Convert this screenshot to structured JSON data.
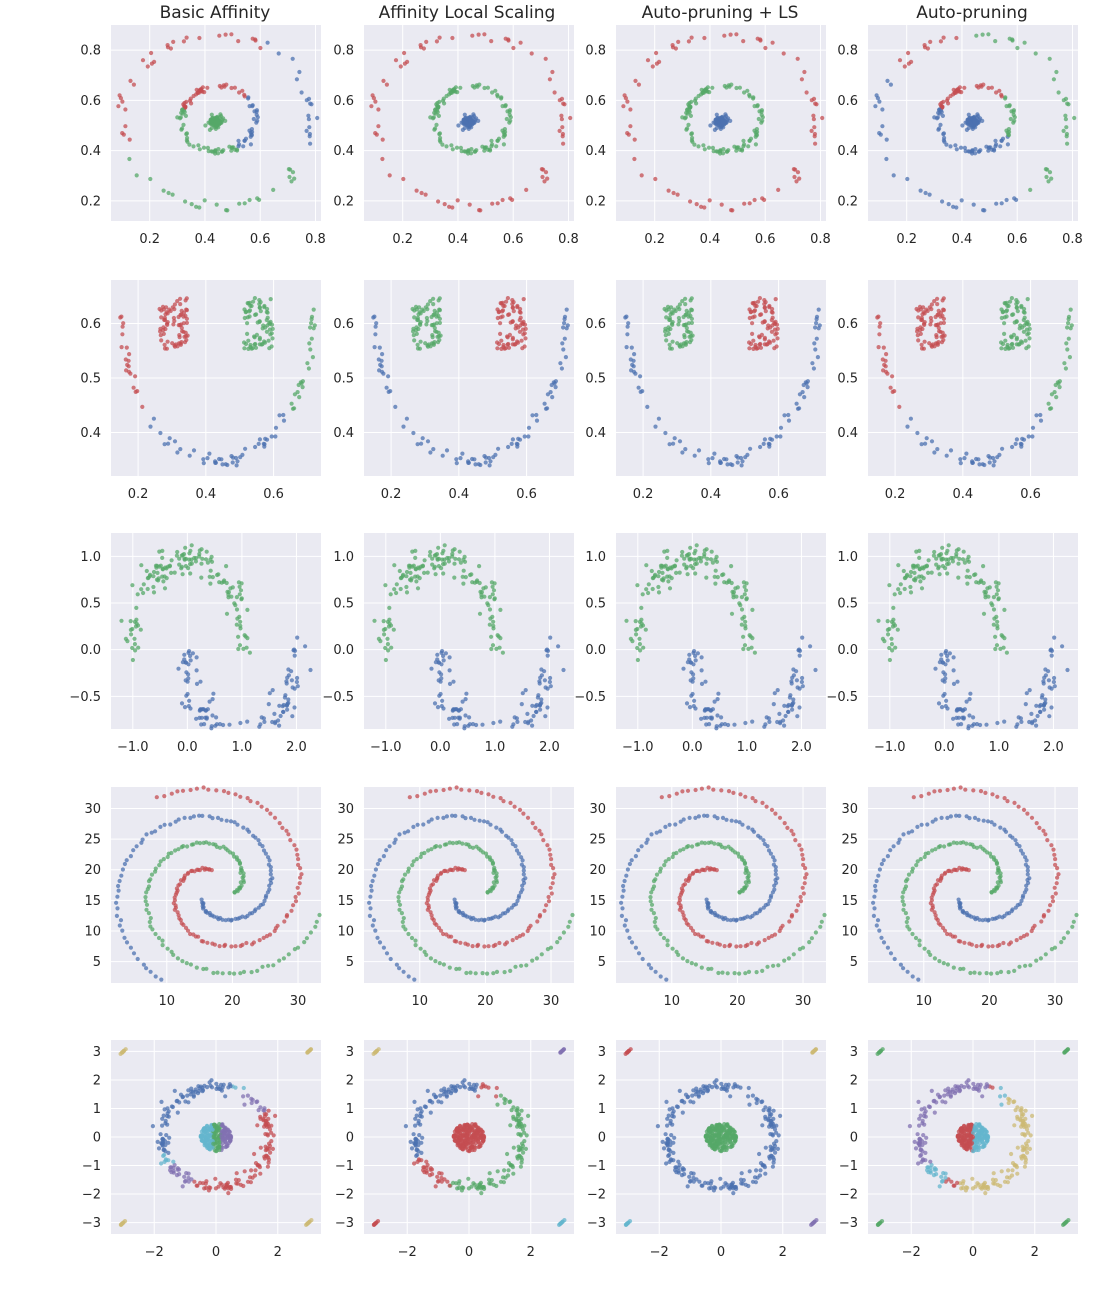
{
  "figure": {
    "column_titles": [
      "Basic Affinity",
      "Affinity Local Scaling",
      "Auto-pruning + LS",
      "Auto-pruning"
    ],
    "colors": {
      "blue": "#4c72b0",
      "green": "#55a868",
      "red": "#c44e52",
      "purple": "#8172b2",
      "cyan": "#64b5cd",
      "tan": "#ccb974",
      "background": "#eaeaf2",
      "grid": "#ffffff"
    }
  },
  "chart_data": [
    {
      "type": "scatter",
      "dataset": "rings",
      "xlim": [
        0.06,
        0.82
      ],
      "ylim": [
        0.12,
        0.9
      ],
      "xticks": [
        0.2,
        0.4,
        0.6,
        0.8
      ],
      "yticks": [
        0.2,
        0.4,
        0.6,
        0.8
      ],
      "tick_format": "fixed1",
      "grid": true,
      "methods": [
        {
          "title": "Basic Affinity",
          "assignment": {
            "center": "green",
            "ring_left": "green",
            "ring_right": "blue",
            "ring_top": "red",
            "outer_top": "red",
            "outer_bottom": "green",
            "outer_right": "blue"
          }
        },
        {
          "title": "Affinity Local Scaling",
          "assignment": {
            "center": "blue",
            "ring": "green",
            "outer": "red"
          }
        },
        {
          "title": "Auto-pruning + LS",
          "assignment": {
            "center": "blue",
            "ring": "green",
            "outer": "red"
          }
        },
        {
          "title": "Auto-pruning",
          "assignment": {
            "center": "blue",
            "ring_right": "green",
            "ring_left_bottom": "blue",
            "ring_top": "red",
            "outer_left": "blue",
            "outer_top": "red",
            "outer_right": "green"
          }
        }
      ]
    },
    {
      "type": "scatter",
      "dataset": "blobs_and_arc",
      "xlim": [
        0.12,
        0.74
      ],
      "ylim": [
        0.32,
        0.68
      ],
      "xticks": [
        0.2,
        0.4,
        0.6
      ],
      "yticks": [
        0.4,
        0.5,
        0.6
      ],
      "tick_format": "fixed1",
      "grid": true,
      "methods": [
        {
          "title": "Basic Affinity",
          "assignment": {
            "left_blob": "red",
            "right_blob": "green",
            "arc_left_end": "red",
            "arc_right_end": "green",
            "arc_bottom": "blue"
          }
        },
        {
          "title": "Affinity Local Scaling",
          "assignment": {
            "left_blob": "green",
            "right_blob": "red",
            "arc": "blue"
          }
        },
        {
          "title": "Auto-pruning + LS",
          "assignment": {
            "left_blob": "green",
            "right_blob": "red",
            "arc": "blue"
          }
        },
        {
          "title": "Auto-pruning",
          "assignment": {
            "left_blob": "red",
            "right_blob": "green",
            "arc_left_end": "red",
            "arc_right_end": "green",
            "arc_bottom": "blue"
          }
        }
      ]
    },
    {
      "type": "scatter",
      "dataset": "moons",
      "xlim": [
        -1.4,
        2.45
      ],
      "ylim": [
        -0.85,
        1.25
      ],
      "xticks": [
        -1,
        0,
        1,
        2
      ],
      "yticks": [
        -0.5,
        0.0,
        0.5,
        1.0
      ],
      "tick_format": "fixed1",
      "grid": true,
      "methods": [
        {
          "title": "Basic Affinity",
          "assignment": {
            "upper_moon": "green",
            "lower_moon": "blue"
          }
        },
        {
          "title": "Affinity Local Scaling",
          "assignment": {
            "upper_moon": "green",
            "lower_moon": "blue"
          }
        },
        {
          "title": "Auto-pruning + LS",
          "assignment": {
            "upper_moon": "green",
            "lower_moon": "blue"
          }
        },
        {
          "title": "Auto-pruning",
          "assignment": {
            "upper_moon": "green",
            "lower_moon": "blue"
          }
        }
      ]
    },
    {
      "type": "scatter",
      "dataset": "spirals",
      "xlim": [
        1.5,
        33.5
      ],
      "ylim": [
        1.5,
        33.5
      ],
      "xticks": [
        10,
        20,
        30
      ],
      "yticks": [
        5,
        10,
        15,
        20,
        25,
        30
      ],
      "tick_format": "int",
      "grid": true,
      "methods": [
        {
          "title": "Basic Affinity",
          "assignment": {
            "spiral_1": "red",
            "spiral_2": "blue",
            "spiral_3": "green"
          }
        },
        {
          "title": "Affinity Local Scaling",
          "assignment": {
            "spiral_1": "red",
            "spiral_2": "blue",
            "spiral_3": "green"
          }
        },
        {
          "title": "Auto-pruning + LS",
          "assignment": {
            "spiral_1": "red",
            "spiral_2": "blue",
            "spiral_3": "green"
          }
        },
        {
          "title": "Auto-pruning",
          "assignment": {
            "spiral_1": "red",
            "spiral_2": "blue",
            "spiral_3": "green"
          }
        }
      ]
    },
    {
      "type": "scatter",
      "dataset": "disk_ring_corners",
      "xlim": [
        -3.4,
        3.4
      ],
      "ylim": [
        -3.4,
        3.4
      ],
      "xticks": [
        -2,
        0,
        2
      ],
      "yticks": [
        -3,
        -2,
        -1,
        0,
        1,
        2,
        3
      ],
      "tick_format": "int",
      "grid": true,
      "methods": [
        {
          "title": "Basic Affinity",
          "assignment": {
            "disk": "split",
            "ring": "mixed",
            "corners": "tan"
          }
        },
        {
          "title": "Affinity Local Scaling",
          "assignment": {
            "disk": "red",
            "ring": "blue/green/red",
            "corners": "tan/purple/red/cyan"
          }
        },
        {
          "title": "Auto-pruning + LS",
          "assignment": {
            "disk": "green",
            "ring": "blue",
            "corners": "tan/red/cyan/purple"
          }
        },
        {
          "title": "Auto-pruning",
          "assignment": {
            "disk": "red/cyan",
            "ring": "purple/tan/blue",
            "corners": "green"
          }
        }
      ]
    }
  ]
}
